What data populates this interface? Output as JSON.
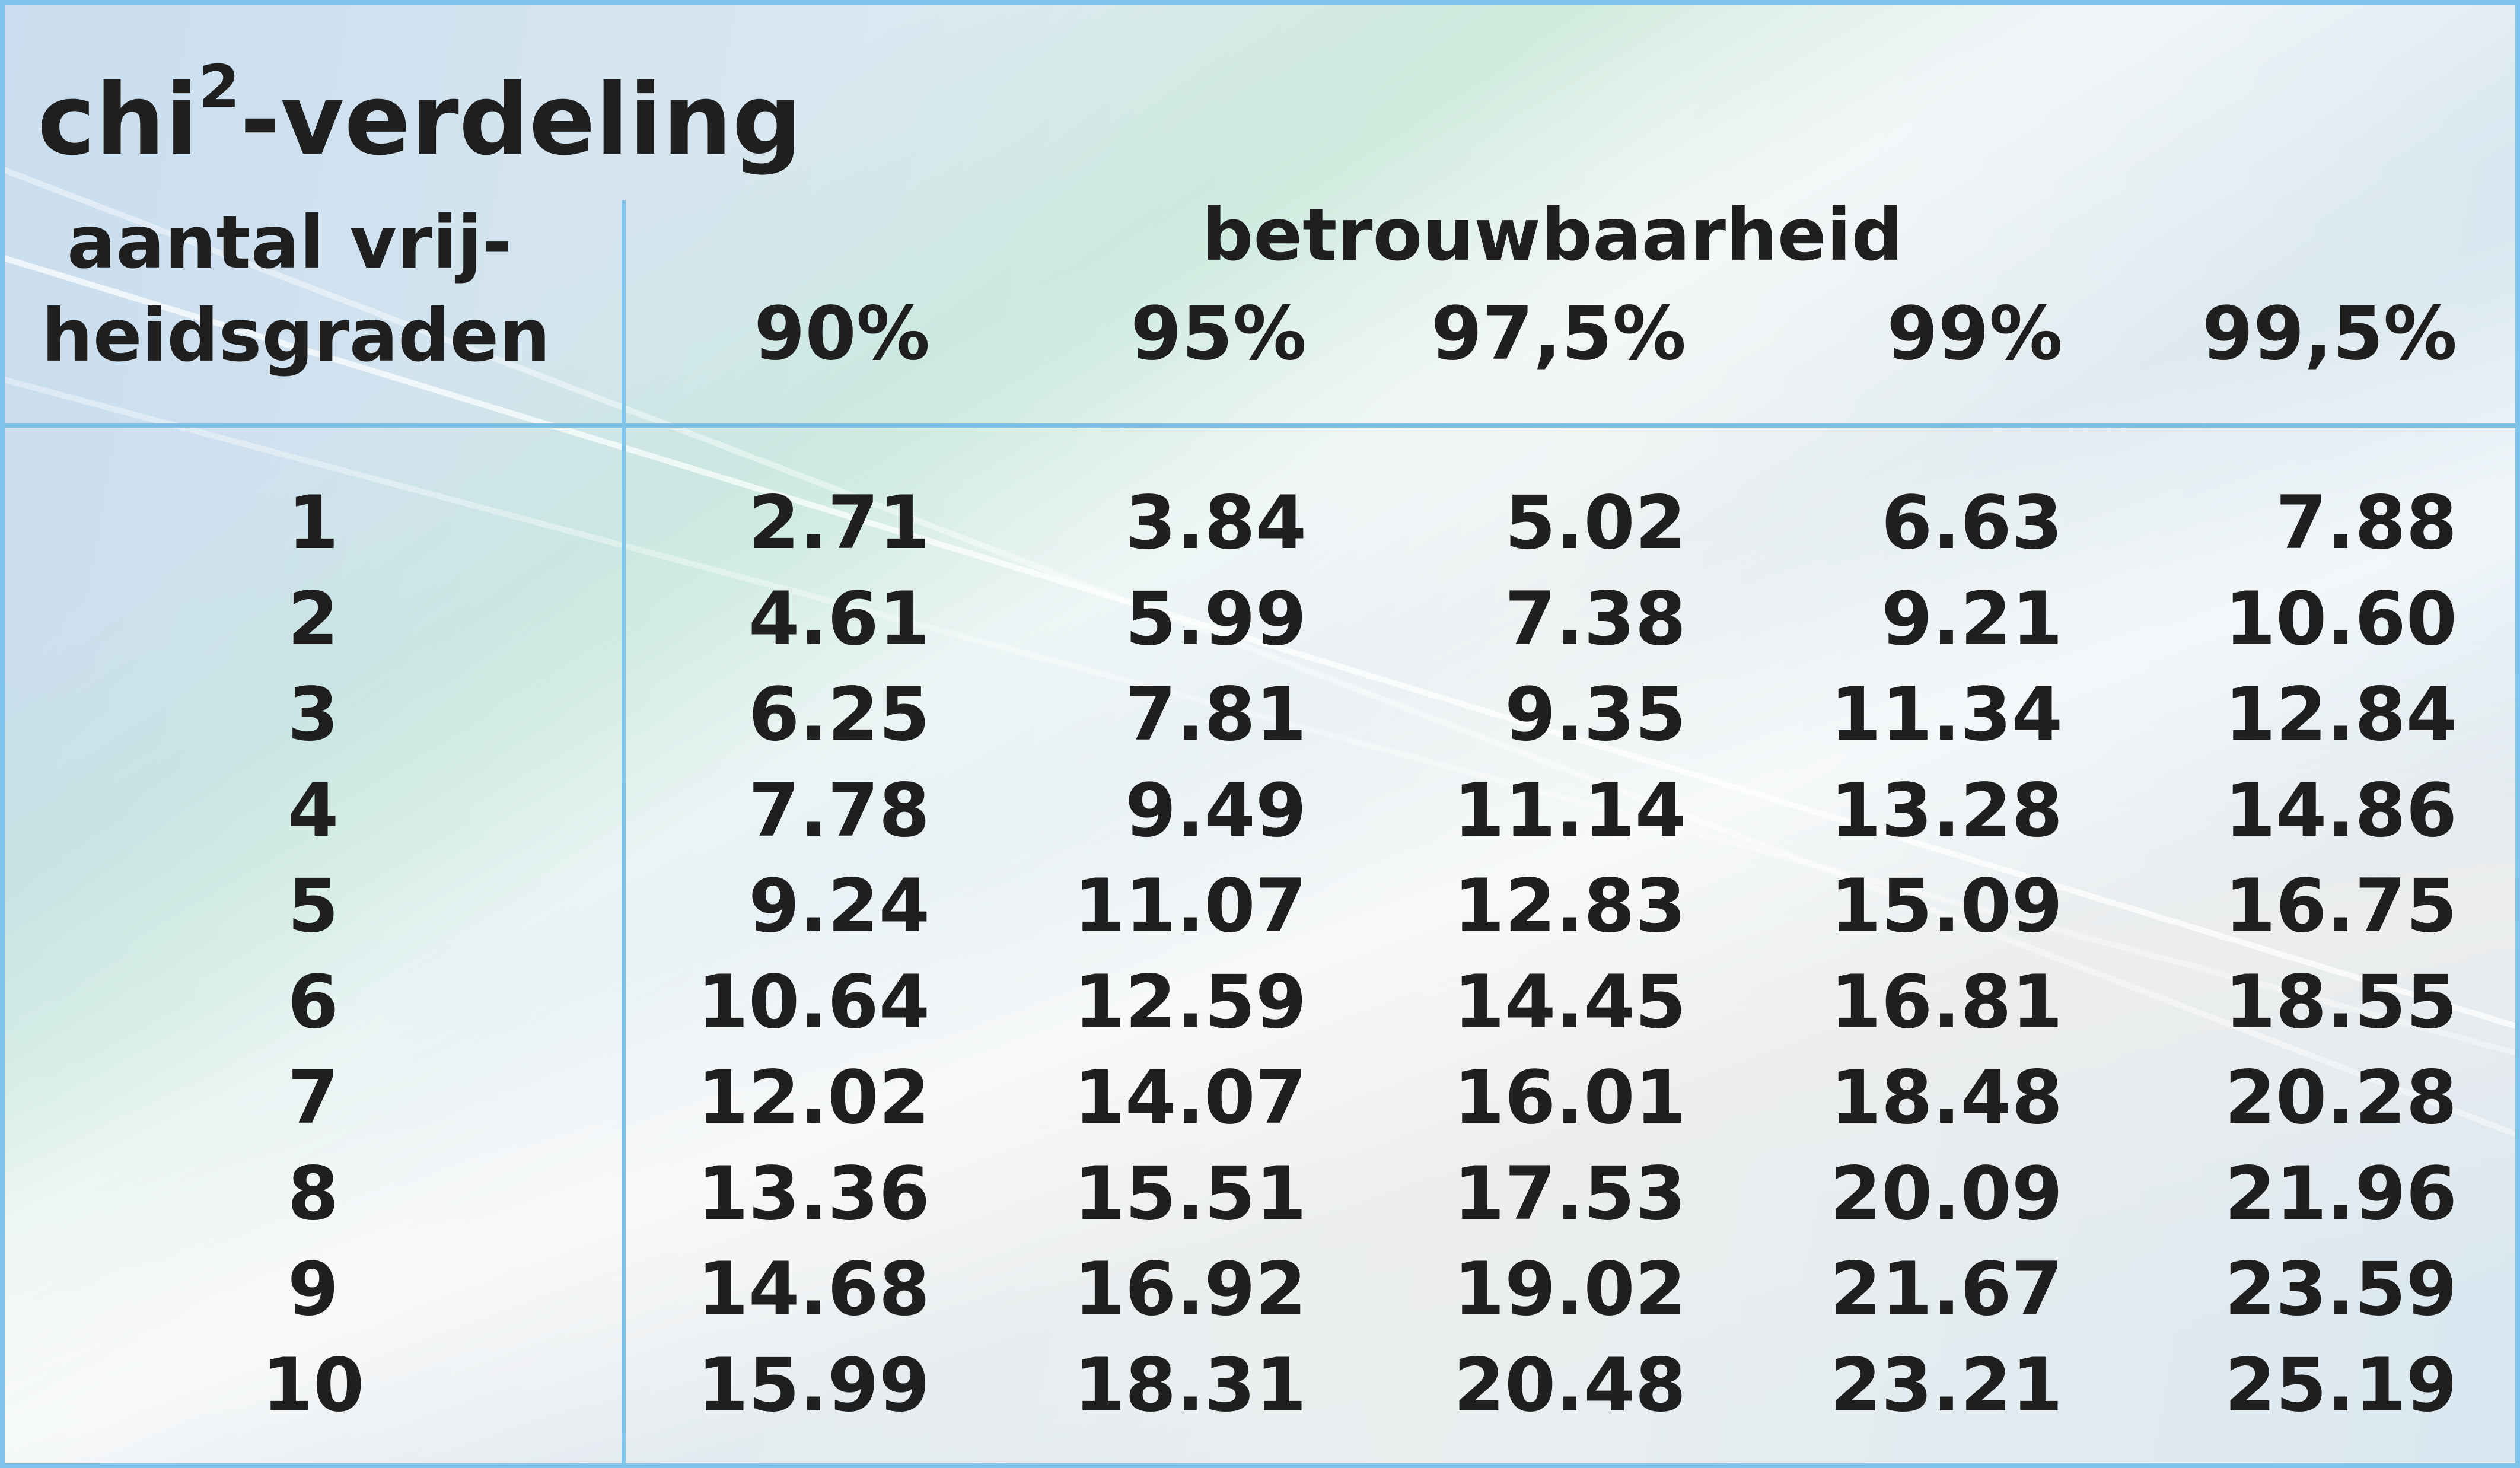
{
  "title": {
    "base": "chi",
    "sup": "2",
    "rest": "-verdeling"
  },
  "header": {
    "df_line1": "aantal vrij-",
    "df_line2": "heidsgraden",
    "group": "betrouwbaarheid",
    "columns": [
      "90%",
      "95%",
      "97,5%",
      "99%",
      "99,5%"
    ]
  },
  "rows": [
    {
      "df": "1",
      "values": [
        "2.71",
        "3.84",
        "5.02",
        "6.63",
        "7.88"
      ]
    },
    {
      "df": "2",
      "values": [
        "4.61",
        "5.99",
        "7.38",
        "9.21",
        "10.60"
      ]
    },
    {
      "df": "3",
      "values": [
        "6.25",
        "7.81",
        "9.35",
        "11.34",
        "12.84"
      ]
    },
    {
      "df": "4",
      "values": [
        "7.78",
        "9.49",
        "11.14",
        "13.28",
        "14.86"
      ]
    },
    {
      "df": "5",
      "values": [
        "9.24",
        "11.07",
        "12.83",
        "15.09",
        "16.75"
      ]
    },
    {
      "df": "6",
      "values": [
        "10.64",
        "12.59",
        "14.45",
        "16.81",
        "18.55"
      ]
    },
    {
      "df": "7",
      "values": [
        "12.02",
        "14.07",
        "16.01",
        "18.48",
        "20.28"
      ]
    },
    {
      "df": "8",
      "values": [
        "13.36",
        "15.51",
        "17.53",
        "20.09",
        "21.96"
      ]
    },
    {
      "df": "9",
      "values": [
        "14.68",
        "16.92",
        "19.02",
        "21.67",
        "23.59"
      ]
    },
    {
      "df": "10",
      "values": [
        "15.99",
        "18.31",
        "20.48",
        "23.21",
        "25.19"
      ]
    }
  ],
  "colors": {
    "rule": "#7fc3ea",
    "text": "#1f1f1f"
  }
}
